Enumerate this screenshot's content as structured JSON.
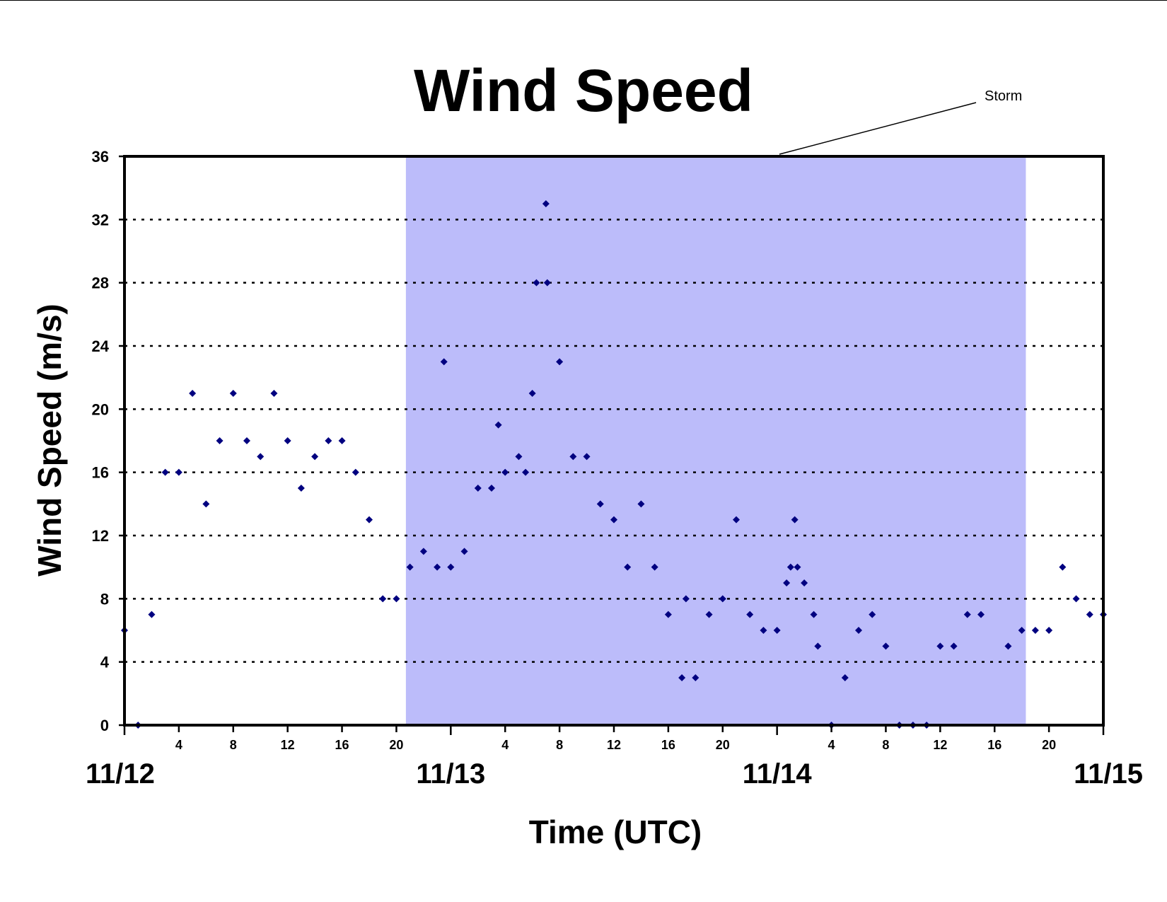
{
  "chart_data": {
    "type": "scatter",
    "title": "Wind Speed",
    "xlabel": "Time (UTC)",
    "ylabel": "Wind Speed (m/s)",
    "ylim": [
      0,
      36
    ],
    "yticks": [
      "0",
      "4",
      "8",
      "12",
      "16",
      "20",
      "24",
      "28",
      "32",
      "36"
    ],
    "x_unit": "hours since 11/12 00 UTC",
    "xlim": [
      0,
      72
    ],
    "day_labels": [
      {
        "hour": 0,
        "label": "11/12"
      },
      {
        "hour": 24,
        "label": "11/13"
      },
      {
        "hour": 48,
        "label": "11/14"
      },
      {
        "hour": 72,
        "label": "11/15"
      }
    ],
    "hour_tick_labels": [
      "4",
      "8",
      "12",
      "16",
      "20"
    ],
    "grid": "horizontal dotted",
    "storm_period": {
      "label": "Storm",
      "start_hour": 20.7,
      "end_hour": 66.3,
      "color": "#bcbcfa"
    },
    "marker_color": "#000080",
    "series": [
      {
        "points": [
          [
            0,
            6
          ],
          [
            1,
            0
          ],
          [
            2,
            7
          ],
          [
            3,
            16
          ],
          [
            4,
            16
          ],
          [
            5,
            21
          ],
          [
            6,
            14
          ],
          [
            7,
            18
          ],
          [
            8,
            21
          ],
          [
            9,
            18
          ],
          [
            10,
            17
          ],
          [
            11,
            21
          ],
          [
            12,
            18
          ],
          [
            13,
            15
          ],
          [
            14,
            17
          ],
          [
            15,
            18
          ],
          [
            16,
            18
          ],
          [
            17,
            16
          ],
          [
            18,
            13
          ],
          [
            19,
            8
          ],
          [
            20,
            8
          ],
          [
            21,
            10
          ],
          [
            22,
            11
          ],
          [
            23,
            10
          ],
          [
            23.5,
            23
          ],
          [
            24,
            10
          ],
          [
            25,
            11
          ],
          [
            26,
            15
          ],
          [
            27,
            15
          ],
          [
            27.5,
            19
          ],
          [
            28,
            16
          ],
          [
            29,
            17
          ],
          [
            29.5,
            16
          ],
          [
            30,
            21
          ],
          [
            30.3,
            28
          ],
          [
            31,
            33
          ],
          [
            31.1,
            28
          ],
          [
            32,
            23
          ],
          [
            33,
            17
          ],
          [
            34,
            17
          ],
          [
            35,
            14
          ],
          [
            36,
            13
          ],
          [
            37,
            10
          ],
          [
            38,
            14
          ],
          [
            39,
            10
          ],
          [
            40,
            7
          ],
          [
            41,
            3
          ],
          [
            41.3,
            8
          ],
          [
            42,
            3
          ],
          [
            43,
            7
          ],
          [
            44,
            8
          ],
          [
            45,
            13
          ],
          [
            46,
            7
          ],
          [
            47,
            6
          ],
          [
            48,
            6
          ],
          [
            48.7,
            9
          ],
          [
            49,
            10
          ],
          [
            49.3,
            13
          ],
          [
            49.5,
            10
          ],
          [
            50,
            9
          ],
          [
            50.7,
            7
          ],
          [
            51,
            5
          ],
          [
            52,
            0
          ],
          [
            53,
            3
          ],
          [
            54,
            6
          ],
          [
            55,
            7
          ],
          [
            56,
            5
          ],
          [
            57,
            0
          ],
          [
            58,
            0
          ],
          [
            59,
            0
          ],
          [
            60,
            5
          ],
          [
            61,
            5
          ],
          [
            62,
            7
          ],
          [
            63,
            7
          ],
          [
            65,
            5
          ],
          [
            66,
            6
          ],
          [
            67,
            6
          ],
          [
            68,
            6
          ],
          [
            69,
            10
          ],
          [
            70,
            8
          ],
          [
            71,
            7
          ],
          [
            72,
            7
          ]
        ]
      }
    ]
  }
}
